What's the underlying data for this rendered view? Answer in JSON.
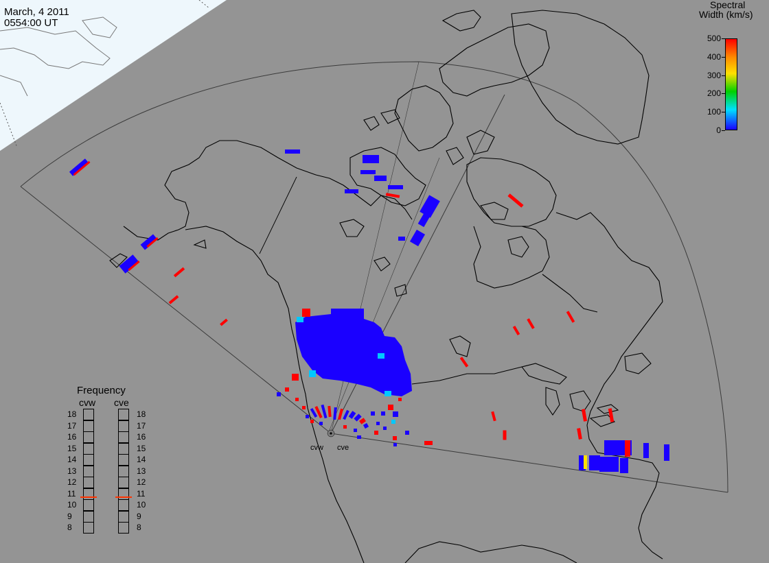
{
  "header": {
    "date": "March, 4 2011",
    "time": "0554:00 UT"
  },
  "colorbar": {
    "title_line1": "Spectral",
    "title_line2": "Width (km/s)",
    "ticks": [
      "500",
      "400",
      "300",
      "200",
      "100",
      "0"
    ],
    "range": [
      0,
      500
    ],
    "colors": {
      "low": "#1a00ff",
      "mid_low": "#00e0ff",
      "mid": "#00d000",
      "mid_high": "#ffe000",
      "high": "#ff0000"
    }
  },
  "frequency_panel": {
    "title": "Frequency",
    "radars": [
      {
        "name": "cvw",
        "selected": 11
      },
      {
        "name": "cve",
        "selected": 11
      }
    ],
    "levels": [
      "18",
      "17",
      "16",
      "15",
      "14",
      "13",
      "12",
      "11",
      "10",
      "9",
      "8"
    ]
  },
  "radar_labels": {
    "west": "cvw",
    "east": "cve"
  },
  "colors": {
    "background": "#949494",
    "daylight": "#eef7fc",
    "coastline": "#000000",
    "fov_outline": "#333333",
    "scatter_blue": "#1a00ff",
    "scatter_red": "#ff0000",
    "scatter_cyan": "#00c8ff",
    "scatter_yellow": "#ffe000"
  }
}
